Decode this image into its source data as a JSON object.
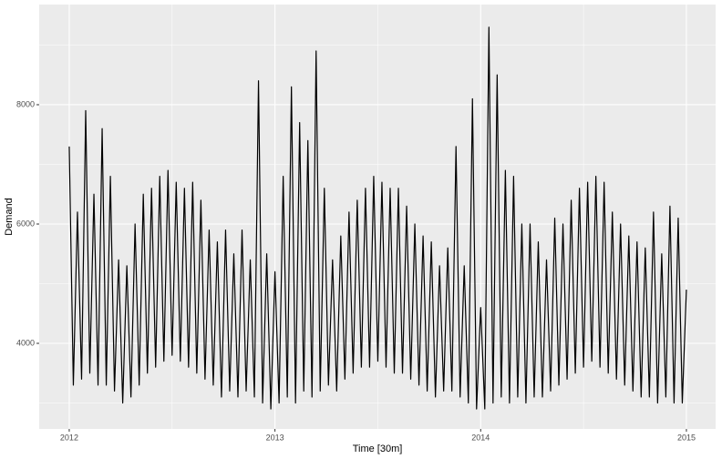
{
  "chart_data": {
    "type": "line",
    "x_label": "Time [30m]",
    "y_label": "Demand",
    "x": [
      2012,
      2012.02,
      2012.04,
      2012.06,
      2012.08,
      2012.1,
      2012.12,
      2012.14,
      2012.16,
      2012.18,
      2012.2,
      2012.22,
      2012.24,
      2012.26,
      2012.28,
      2012.3,
      2012.32,
      2012.34,
      2012.36,
      2012.38,
      2012.4,
      2012.42,
      2012.44,
      2012.46,
      2012.48,
      2012.5,
      2012.52,
      2012.54,
      2012.56,
      2012.58,
      2012.6,
      2012.62,
      2012.64,
      2012.66,
      2012.68,
      2012.7,
      2012.72,
      2012.74,
      2012.76,
      2012.78,
      2012.8,
      2012.82,
      2012.84,
      2012.86,
      2012.88,
      2012.9,
      2012.92,
      2012.94,
      2012.96,
      2012.98,
      2013,
      2013.02,
      2013.04,
      2013.06,
      2013.08,
      2013.1,
      2013.12,
      2013.14,
      2013.16,
      2013.18,
      2013.2,
      2013.22,
      2013.24,
      2013.26,
      2013.28,
      2013.3,
      2013.32,
      2013.34,
      2013.36,
      2013.38,
      2013.4,
      2013.42,
      2013.44,
      2013.46,
      2013.48,
      2013.5,
      2013.52,
      2013.54,
      2013.56,
      2013.58,
      2013.6,
      2013.62,
      2013.64,
      2013.66,
      2013.68,
      2013.7,
      2013.72,
      2013.74,
      2013.76,
      2013.78,
      2013.8,
      2013.82,
      2013.84,
      2013.86,
      2013.88,
      2013.9,
      2013.92,
      2013.94,
      2013.96,
      2013.98,
      2014,
      2014.02,
      2014.04,
      2014.06,
      2014.08,
      2014.1,
      2014.12,
      2014.14,
      2014.16,
      2014.18,
      2014.2,
      2014.22,
      2014.24,
      2014.26,
      2014.28,
      2014.3,
      2014.32,
      2014.34,
      2014.36,
      2014.38,
      2014.4,
      2014.42,
      2014.44,
      2014.46,
      2014.48,
      2014.5,
      2014.52,
      2014.54,
      2014.56,
      2014.58,
      2014.6,
      2014.62,
      2014.64,
      2014.66,
      2014.68,
      2014.7,
      2014.72,
      2014.74,
      2014.76,
      2014.78,
      2014.8,
      2014.82,
      2014.84,
      2014.86,
      2014.88,
      2014.9,
      2014.92,
      2014.94,
      2014.96,
      2014.98,
      2015
    ],
    "values": [
      7300,
      3300,
      6200,
      3400,
      7900,
      3500,
      6500,
      3300,
      7600,
      3300,
      6800,
      3200,
      5400,
      3000,
      5300,
      3100,
      6000,
      3300,
      6500,
      3500,
      6600,
      3600,
      6800,
      3700,
      6900,
      3800,
      6700,
      3700,
      6600,
      3600,
      6700,
      3500,
      6400,
      3400,
      5900,
      3300,
      5700,
      3100,
      5900,
      3200,
      5500,
      3100,
      5900,
      3200,
      5400,
      3100,
      8400,
      3000,
      5500,
      2900,
      5200,
      3000,
      6800,
      3100,
      8300,
      3000,
      7700,
      3200,
      7400,
      3100,
      8900,
      3200,
      6600,
      3300,
      5400,
      3200,
      5800,
      3400,
      6200,
      3500,
      6400,
      3600,
      6600,
      3600,
      6800,
      3700,
      6700,
      3600,
      6600,
      3500,
      6600,
      3500,
      6300,
      3400,
      6000,
      3300,
      5800,
      3200,
      5700,
      3100,
      5300,
      3200,
      5600,
      3200,
      7300,
      3100,
      5300,
      3000,
      8100,
      2900,
      4600,
      2900,
      9300,
      3000,
      8500,
      3100,
      6900,
      3000,
      6800,
      3100,
      6000,
      3000,
      6000,
      3100,
      5700,
      3100,
      5400,
      3200,
      6100,
      3300,
      6000,
      3400,
      6400,
      3500,
      6600,
      3600,
      6700,
      3700,
      6800,
      3600,
      6700,
      3500,
      6200,
      3400,
      6000,
      3300,
      5800,
      3200,
      5700,
      3100,
      5600,
      3100,
      6200,
      3000,
      5500,
      3100,
      6300,
      3000,
      6100,
      3000,
      4900
    ],
    "color": "#000000",
    "xlim": [
      2011.854,
      2015.142
    ],
    "xticks": [
      2012,
      2013,
      2014,
      2015
    ],
    "x_minor_grid": [
      2012.5,
      2013.5,
      2014.5
    ],
    "ylim": [
      2565,
      9679
    ],
    "yticks": [
      4000,
      6000,
      8000
    ],
    "y_minor_grid": [
      3000,
      5000,
      7000,
      9000
    ],
    "grid": true
  }
}
